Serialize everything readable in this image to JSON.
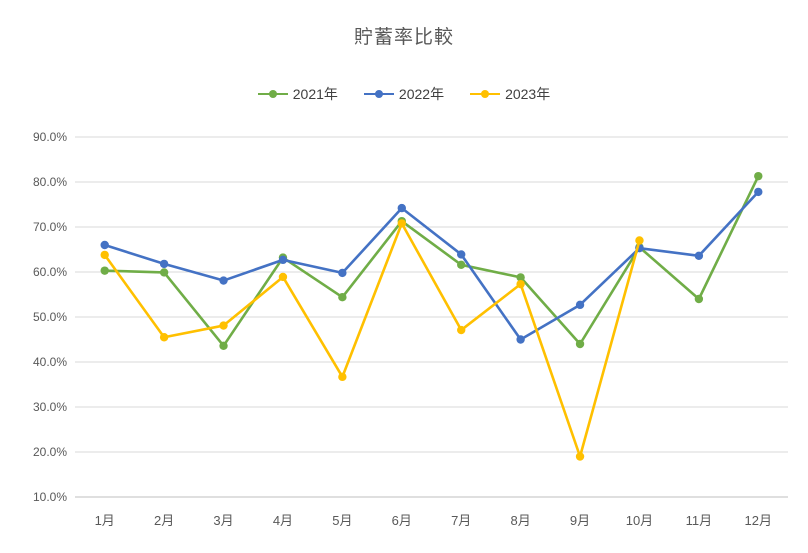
{
  "chart_data": {
    "type": "line",
    "title": "貯蓄率比較",
    "categories": [
      "1月",
      "2月",
      "3月",
      "4月",
      "5月",
      "6月",
      "7月",
      "8月",
      "9月",
      "10月",
      "11月",
      "12月"
    ],
    "series": [
      {
        "name": "2021年",
        "color": "#70AD47",
        "values": [
          60.3,
          59.9,
          43.6,
          63.2,
          54.4,
          71.3,
          61.6,
          58.8,
          44.0,
          65.5,
          54.0,
          81.3
        ]
      },
      {
        "name": "2022年",
        "color": "#4472C4",
        "values": [
          66.0,
          61.8,
          58.1,
          62.7,
          59.8,
          74.2,
          63.9,
          45.0,
          52.7,
          65.3,
          63.6,
          77.8
        ]
      },
      {
        "name": "2023年",
        "color": "#FFC000",
        "values": [
          63.8,
          45.5,
          48.1,
          58.9,
          36.7,
          70.8,
          47.1,
          57.3,
          19.0,
          67.0,
          null,
          null
        ]
      }
    ],
    "xlabel": "",
    "ylabel": "",
    "ylim": [
      10,
      90
    ],
    "y_tick_step": 10,
    "y_ticks": [
      "90.0%",
      "80.0%",
      "70.0%",
      "60.0%",
      "50.0%",
      "40.0%",
      "30.0%",
      "20.0%",
      "10.0%"
    ],
    "grid": "horizontal",
    "legend_position": "top"
  },
  "colors": {
    "grid": "#D9D9D9",
    "axis_line": "#BFBFBF",
    "axis_text": "#595959",
    "title_text": "#595959",
    "background": "#FFFFFF"
  }
}
